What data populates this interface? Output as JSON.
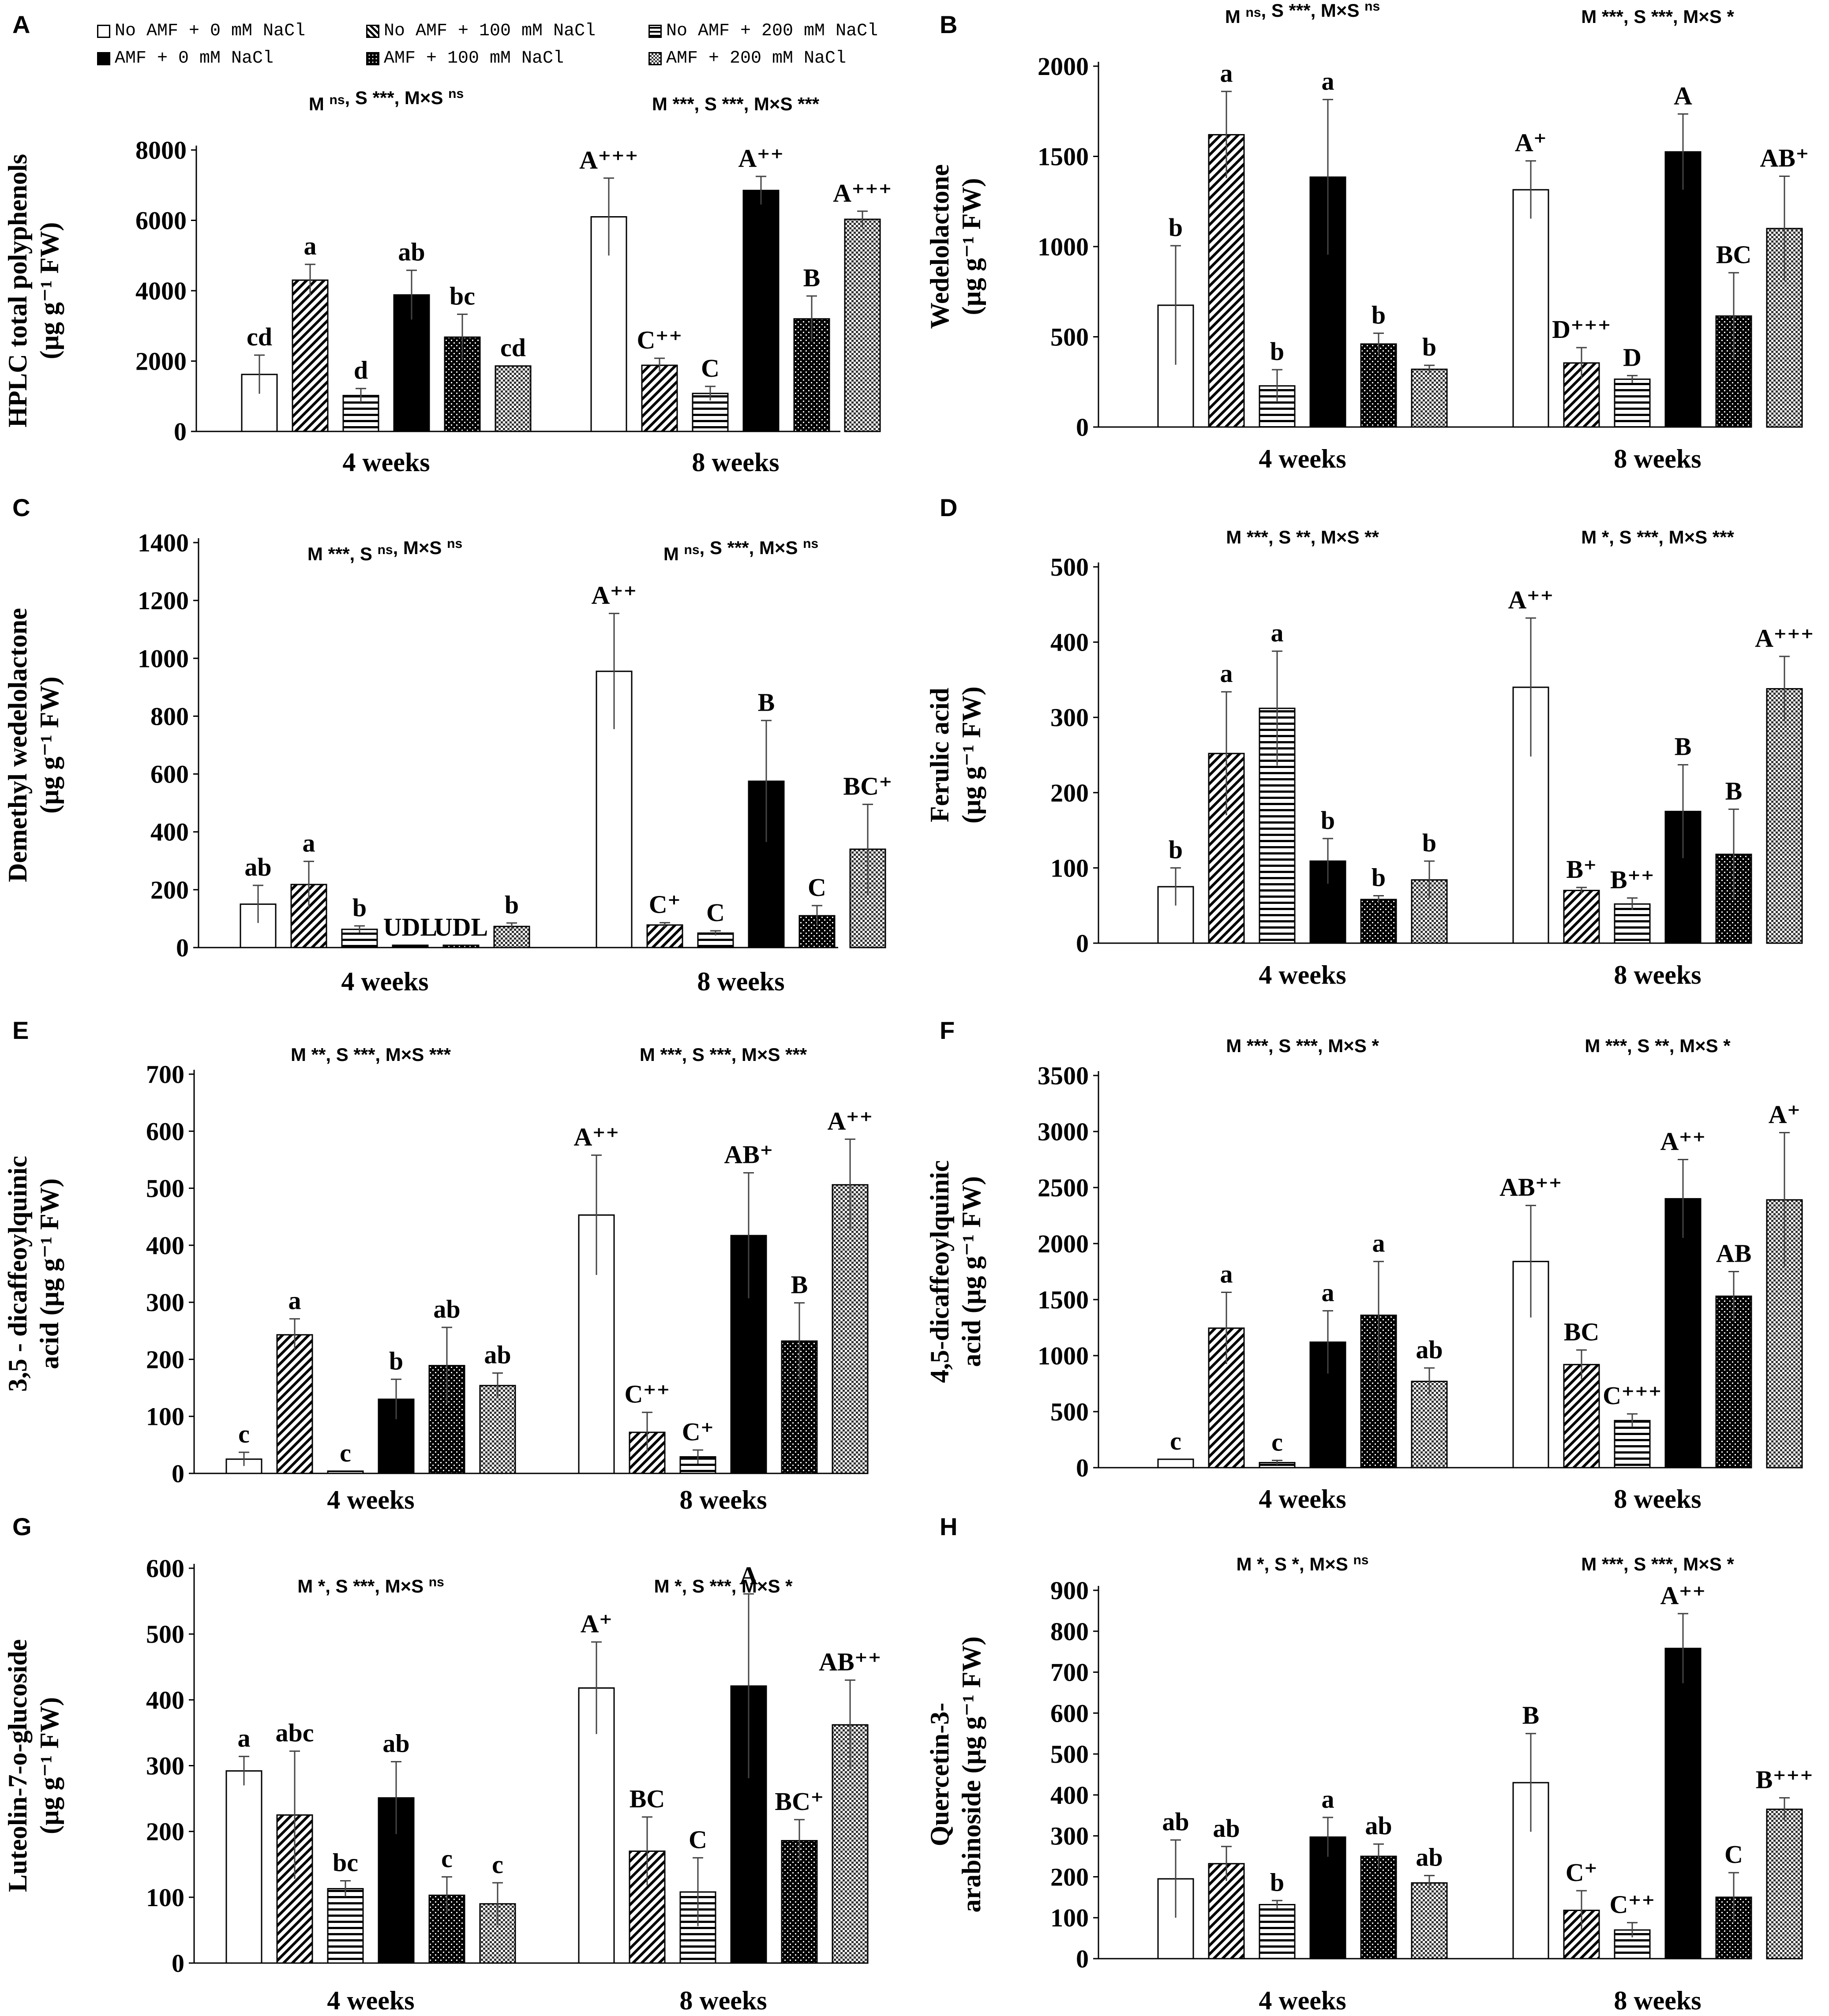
{
  "legend": {
    "entries": [
      {
        "label": "No AMF + 0 mM NaCl",
        "pattern": "pat-white"
      },
      {
        "label": "No AMF + 100 mM NaCl",
        "pattern": "pat-diag"
      },
      {
        "label": "No AMF + 200 mM NaCl",
        "pattern": "pat-horiz"
      },
      {
        "label": "AMF + 0 mM NaCl",
        "pattern": "pat-black"
      },
      {
        "label": "AMF + 100 mM NaCl",
        "pattern": "pat-dots"
      },
      {
        "label": "AMF + 200 mM NaCl",
        "pattern": "pat-check"
      }
    ]
  },
  "colors": {
    "axis": "#000000",
    "black_bar": "#000000",
    "background": "#ffffff"
  },
  "chart_data": [
    {
      "panel": "A",
      "type": "bar",
      "ylabel_lines": [
        "HPLC total polyphenols",
        "(µg g⁻¹ FW)"
      ],
      "ylim": [
        0,
        8000
      ],
      "yticks": [
        0,
        2000,
        4000,
        6000,
        8000
      ],
      "categories": [
        "4 weeks",
        "8 weeks"
      ],
      "stats": [
        "M ns, S ***, M×S ns",
        "M ***, S ***, M×S ***"
      ],
      "series": [
        {
          "name": "No AMF + 0 mM NaCl",
          "values": [
            1620,
            6100
          ],
          "errors": [
            550,
            1100
          ],
          "labels": [
            "cd",
            "A⁺⁺⁺"
          ]
        },
        {
          "name": "No AMF + 100 mM NaCl",
          "values": [
            4300,
            1880
          ],
          "errors": [
            450,
            200
          ],
          "labels": [
            "a",
            "C⁺⁺"
          ]
        },
        {
          "name": "No AMF + 200 mM NaCl",
          "values": [
            1020,
            1080
          ],
          "errors": [
            200,
            200
          ],
          "labels": [
            "d",
            "C"
          ]
        },
        {
          "name": "AMF + 0 mM NaCl",
          "values": [
            3880,
            6850
          ],
          "errors": [
            700,
            400
          ],
          "labels": [
            "ab",
            "A⁺⁺"
          ]
        },
        {
          "name": "AMF + 100 mM NaCl",
          "values": [
            2680,
            3200
          ],
          "errors": [
            650,
            650
          ],
          "labels": [
            "bc",
            "B"
          ]
        },
        {
          "name": "AMF + 200 mM NaCl",
          "values": [
            1860,
            6030
          ],
          "errors": [
            0,
            230
          ],
          "labels": [
            "cd",
            "A⁺⁺⁺"
          ]
        }
      ]
    },
    {
      "panel": "B",
      "type": "bar",
      "ylabel_lines": [
        "Wedelolactone",
        "(µg g⁻¹ FW)"
      ],
      "ylim": [
        0,
        2000
      ],
      "yticks": [
        0,
        500,
        1000,
        1500,
        2000
      ],
      "categories": [
        "4 weeks",
        "8 weeks"
      ],
      "stats": [
        "M ns, S ***, M×S ns",
        "M ***, S ***, M×S *"
      ],
      "series": [
        {
          "name": "No AMF + 0 mM NaCl",
          "values": [
            675,
            1315
          ],
          "errors": [
            330,
            160
          ],
          "labels": [
            "b",
            "A⁺"
          ]
        },
        {
          "name": "No AMF + 100 mM NaCl",
          "values": [
            1620,
            355
          ],
          "errors": [
            240,
            85
          ],
          "labels": [
            "a",
            "D⁺⁺⁺"
          ]
        },
        {
          "name": "No AMF + 200 mM NaCl",
          "values": [
            228,
            265
          ],
          "errors": [
            90,
            20
          ],
          "labels": [
            "b",
            "D"
          ]
        },
        {
          "name": "AMF + 0 mM NaCl",
          "values": [
            1385,
            1525
          ],
          "errors": [
            430,
            210
          ],
          "labels": [
            "a",
            "A"
          ]
        },
        {
          "name": "AMF + 100 mM NaCl",
          "values": [
            460,
            615
          ],
          "errors": [
            60,
            240
          ],
          "labels": [
            "b",
            "BC"
          ]
        },
        {
          "name": "AMF + 200 mM NaCl",
          "values": [
            320,
            1100
          ],
          "errors": [
            22,
            290
          ],
          "labels": [
            "b",
            "AB⁺"
          ]
        }
      ]
    },
    {
      "panel": "C",
      "type": "bar",
      "ylabel_lines": [
        "Demethyl wedelolactone",
        "(µg g⁻¹ FW)"
      ],
      "ylim": [
        0,
        1400
      ],
      "yticks": [
        0,
        200,
        400,
        600,
        800,
        1000,
        1200,
        1400
      ],
      "categories": [
        "4 weeks",
        "8 weeks"
      ],
      "stats": [
        "M ***, S ns, M×S ns",
        "M ns, S ***, M×S ns"
      ],
      "series": [
        {
          "name": "No AMF + 0 mM NaCl",
          "values": [
            150,
            955
          ],
          "errors": [
            65,
            200
          ],
          "labels": [
            "ab",
            "A⁺⁺"
          ]
        },
        {
          "name": "No AMF + 100 mM NaCl",
          "values": [
            218,
            78
          ],
          "errors": [
            80,
            8
          ],
          "labels": [
            "a",
            "C⁺"
          ]
        },
        {
          "name": "No AMF + 200 mM NaCl",
          "values": [
            63,
            50
          ],
          "errors": [
            12,
            8
          ],
          "labels": [
            "b",
            "C"
          ]
        },
        {
          "name": "AMF + 0 mM NaCl",
          "values": [
            8,
            575
          ],
          "errors": [
            0,
            210
          ],
          "labels": [
            "UDL",
            "B"
          ]
        },
        {
          "name": "AMF + 100 mM NaCl",
          "values": [
            8,
            110
          ],
          "errors": [
            0,
            35
          ],
          "labels": [
            "UDL",
            "C"
          ]
        },
        {
          "name": "AMF + 200 mM NaCl",
          "values": [
            73,
            340
          ],
          "errors": [
            12,
            155
          ],
          "labels": [
            "b",
            "BC⁺"
          ]
        }
      ]
    },
    {
      "panel": "D",
      "type": "bar",
      "ylabel_lines": [
        "Ferulic acid",
        "(µg g⁻¹ FW)"
      ],
      "ylim": [
        0,
        500
      ],
      "yticks": [
        0,
        100,
        200,
        300,
        400,
        500
      ],
      "categories": [
        "4 weeks",
        "8 weeks"
      ],
      "stats": [
        "M ***, S **, M×S **",
        "M *, S ***, M×S ***"
      ],
      "series": [
        {
          "name": "No AMF + 0 mM NaCl",
          "values": [
            75,
            340
          ],
          "errors": [
            25,
            92
          ],
          "labels": [
            "b",
            "A⁺⁺"
          ]
        },
        {
          "name": "No AMF + 100 mM NaCl",
          "values": [
            252,
            70
          ],
          "errors": [
            82,
            4
          ],
          "labels": [
            "a",
            "B⁺"
          ]
        },
        {
          "name": "No AMF + 200 mM NaCl",
          "values": [
            312,
            52
          ],
          "errors": [
            76,
            8
          ],
          "labels": [
            "a",
            "B⁺⁺"
          ]
        },
        {
          "name": "AMF + 0 mM NaCl",
          "values": [
            109,
            175
          ],
          "errors": [
            30,
            62
          ],
          "labels": [
            "b",
            "B"
          ]
        },
        {
          "name": "AMF + 100 mM NaCl",
          "values": [
            58,
            118
          ],
          "errors": [
            5,
            60
          ],
          "labels": [
            "b",
            "B"
          ]
        },
        {
          "name": "AMF + 200 mM NaCl",
          "values": [
            84,
            338
          ],
          "errors": [
            25,
            43
          ],
          "labels": [
            "b",
            "A⁺⁺⁺"
          ]
        }
      ]
    },
    {
      "panel": "E",
      "type": "bar",
      "ylabel_lines": [
        "3,5 - dicaffeoylquinic",
        "acid (µg g⁻¹ FW)"
      ],
      "ylim": [
        0,
        700
      ],
      "yticks": [
        0,
        100,
        200,
        300,
        400,
        500,
        600,
        700
      ],
      "categories": [
        "4 weeks",
        "8 weeks"
      ],
      "stats": [
        "M **, S ***, M×S ***",
        "M ***, S ***, M×S ***"
      ],
      "series": [
        {
          "name": "No AMF + 0 mM NaCl",
          "values": [
            25,
            453
          ],
          "errors": [
            12,
            105
          ],
          "labels": [
            "c",
            "A⁺⁺"
          ]
        },
        {
          "name": "No AMF + 100 mM NaCl",
          "values": [
            243,
            72
          ],
          "errors": [
            28,
            35
          ],
          "labels": [
            "a",
            "C⁺⁺"
          ]
        },
        {
          "name": "No AMF + 200 mM NaCl",
          "values": [
            4,
            29
          ],
          "errors": [
            0,
            12
          ],
          "labels": [
            "c",
            "C⁺"
          ]
        },
        {
          "name": "AMF + 0 mM NaCl",
          "values": [
            130,
            417
          ],
          "errors": [
            35,
            110
          ],
          "labels": [
            "b",
            "AB⁺"
          ]
        },
        {
          "name": "AMF + 100 mM NaCl",
          "values": [
            189,
            232
          ],
          "errors": [
            67,
            67
          ],
          "labels": [
            "ab",
            "B"
          ]
        },
        {
          "name": "AMF + 200 mM NaCl",
          "values": [
            154,
            506
          ],
          "errors": [
            22,
            80
          ],
          "labels": [
            "ab",
            "A⁺⁺"
          ]
        }
      ]
    },
    {
      "panel": "F",
      "type": "bar",
      "ylabel_lines": [
        "4,5-dicaffeoylquinic",
        "acid (µg g⁻¹ FW)"
      ],
      "ylim": [
        0,
        3500
      ],
      "yticks": [
        0,
        500,
        1000,
        1500,
        2000,
        2500,
        3000,
        3500
      ],
      "categories": [
        "4 weeks",
        "8 weeks"
      ],
      "stats": [
        "M ***, S ***, M×S *",
        "M ***, S **, M×S *"
      ],
      "series": [
        {
          "name": "No AMF + 0 mM NaCl",
          "values": [
            75,
            1840
          ],
          "errors": [
            0,
            500
          ],
          "labels": [
            "c",
            "AB⁺⁺"
          ]
        },
        {
          "name": "No AMF + 100 mM NaCl",
          "values": [
            1245,
            920
          ],
          "errors": [
            320,
            130
          ],
          "labels": [
            "a",
            "BC"
          ]
        },
        {
          "name": "No AMF + 200 mM NaCl",
          "values": [
            45,
            420
          ],
          "errors": [
            20,
            60
          ],
          "labels": [
            "c",
            "C⁺⁺⁺"
          ]
        },
        {
          "name": "AMF + 0 mM NaCl",
          "values": [
            1120,
            2400
          ],
          "errors": [
            280,
            350
          ],
          "labels": [
            "a",
            "A⁺⁺"
          ]
        },
        {
          "name": "AMF + 100 mM NaCl",
          "values": [
            1360,
            1530
          ],
          "errors": [
            480,
            220
          ],
          "labels": [
            "a",
            "AB"
          ]
        },
        {
          "name": "AMF + 200 mM NaCl",
          "values": [
            770,
            2390
          ],
          "errors": [
            120,
            600
          ],
          "labels": [
            "ab",
            "A⁺"
          ]
        }
      ]
    },
    {
      "panel": "G",
      "type": "bar",
      "ylabel_lines": [
        "Luteolin-7-o-glucoside",
        "(µg g⁻¹ FW)"
      ],
      "ylim": [
        0,
        600
      ],
      "yticks": [
        0,
        100,
        200,
        300,
        400,
        500,
        600
      ],
      "categories": [
        "4 weeks",
        "8 weeks"
      ],
      "stats": [
        "M *, S ***, M×S ns",
        "M *, S ***, M×S *"
      ],
      "series": [
        {
          "name": "No AMF + 0 mM NaCl",
          "values": [
            292,
            418
          ],
          "errors": [
            22,
            70
          ],
          "labels": [
            "a",
            "A⁺"
          ]
        },
        {
          "name": "No AMF + 100 mM NaCl",
          "values": [
            225,
            170
          ],
          "errors": [
            97,
            52
          ],
          "labels": [
            "abc",
            "BC"
          ]
        },
        {
          "name": "No AMF + 200 mM NaCl",
          "values": [
            113,
            108
          ],
          "errors": [
            12,
            52
          ],
          "labels": [
            "bc",
            "C"
          ]
        },
        {
          "name": "AMF + 0 mM NaCl",
          "values": [
            251,
            421
          ],
          "errors": [
            55,
            140
          ],
          "labels": [
            "ab",
            "A"
          ]
        },
        {
          "name": "AMF + 100 mM NaCl",
          "values": [
            103,
            186
          ],
          "errors": [
            28,
            32
          ],
          "labels": [
            "c",
            "BC⁺"
          ]
        },
        {
          "name": "AMF + 200 mM NaCl",
          "values": [
            90,
            362
          ],
          "errors": [
            32,
            68
          ],
          "labels": [
            "c",
            "AB⁺⁺"
          ]
        }
      ]
    },
    {
      "panel": "H",
      "type": "bar",
      "ylabel_lines": [
        "Quercetin-3-",
        "arabinoside (µg g⁻¹ FW)"
      ],
      "ylim": [
        0,
        900
      ],
      "yticks": [
        0,
        100,
        200,
        300,
        400,
        500,
        600,
        700,
        800,
        900
      ],
      "categories": [
        "4 weeks",
        "8 weeks"
      ],
      "stats": [
        "M *, S *, M×S ns",
        "M ***, S ***, M×S *"
      ],
      "series": [
        {
          "name": "No AMF + 0 mM NaCl",
          "values": [
            195,
            430
          ],
          "errors": [
            95,
            120
          ],
          "labels": [
            "ab",
            "B"
          ]
        },
        {
          "name": "No AMF + 100 mM NaCl",
          "values": [
            232,
            118
          ],
          "errors": [
            42,
            48
          ],
          "labels": [
            "ab",
            "C⁺"
          ]
        },
        {
          "name": "No AMF + 200 mM NaCl",
          "values": [
            132,
            70
          ],
          "errors": [
            10,
            18
          ],
          "labels": [
            "b",
            "C⁺⁺"
          ]
        },
        {
          "name": "AMF + 0 mM NaCl",
          "values": [
            297,
            758
          ],
          "errors": [
            48,
            85
          ],
          "labels": [
            "a",
            "A⁺⁺"
          ]
        },
        {
          "name": "AMF + 100 mM NaCl",
          "values": [
            250,
            150
          ],
          "errors": [
            30,
            60
          ],
          "labels": [
            "ab",
            "C"
          ]
        },
        {
          "name": "AMF + 200 mM NaCl",
          "values": [
            185,
            365
          ],
          "errors": [
            18,
            28
          ],
          "labels": [
            "ab",
            "B⁺⁺⁺"
          ]
        }
      ]
    }
  ]
}
